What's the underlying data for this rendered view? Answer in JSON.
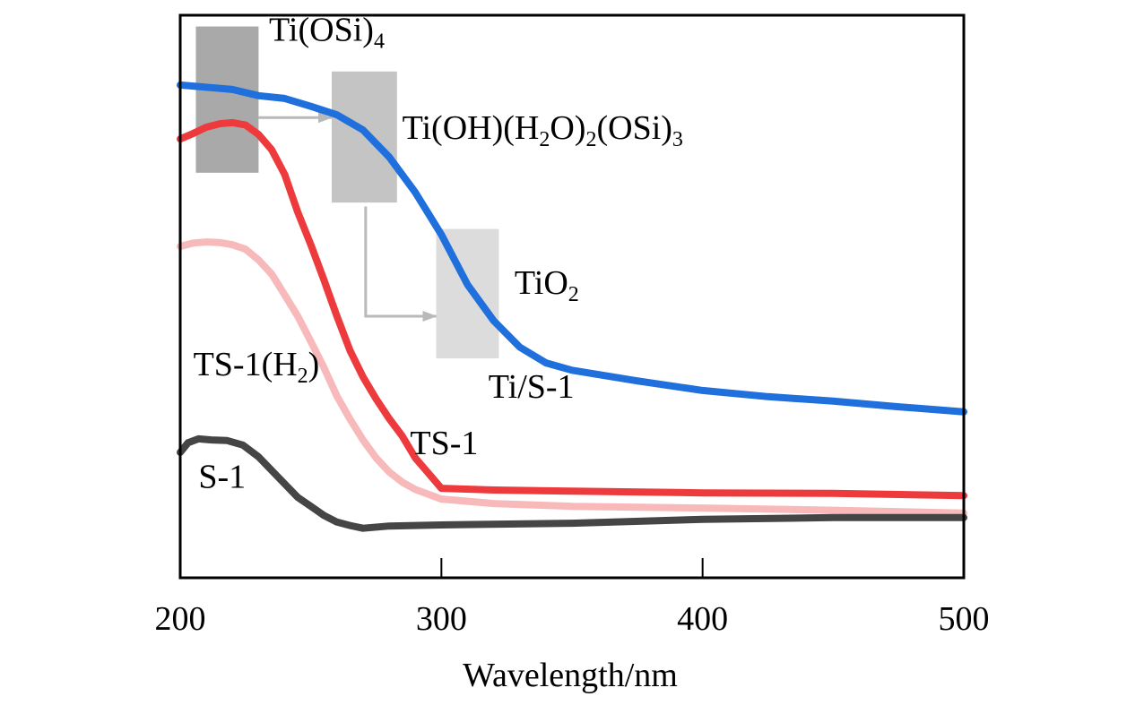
{
  "chart_data": {
    "type": "line",
    "title": "",
    "xlabel": "Wavelength/nm",
    "ylabel": "",
    "xlim": [
      200,
      500
    ],
    "ylim": [
      0,
      1
    ],
    "y_units": "arbitrary absorbance (no ticks shown)",
    "xticks": [
      200,
      300,
      400,
      500
    ],
    "xtick_labels": [
      "200",
      "300",
      "400",
      "500"
    ],
    "grid": false,
    "legend": "none (series labelled inline)",
    "series": [
      {
        "name": "Ti/S-1",
        "color": "#1f6fdc",
        "x": [
          200,
          210,
          220,
          230,
          240,
          250,
          260,
          270,
          280,
          290,
          300,
          310,
          320,
          330,
          340,
          350,
          375,
          400,
          425,
          450,
          475,
          500
        ],
        "y": [
          0.876,
          0.872,
          0.868,
          0.857,
          0.852,
          0.838,
          0.823,
          0.796,
          0.748,
          0.685,
          0.61,
          0.521,
          0.457,
          0.41,
          0.382,
          0.369,
          0.35,
          0.333,
          0.322,
          0.314,
          0.304,
          0.295
        ]
      },
      {
        "name": "TS-1",
        "color": "#ec3a3d",
        "x": [
          200,
          205,
          210,
          215,
          220,
          225,
          230,
          235,
          240,
          245,
          250,
          255,
          260,
          265,
          270,
          275,
          280,
          285,
          290,
          295,
          300,
          320,
          350,
          400,
          450,
          500
        ],
        "y": [
          0.78,
          0.79,
          0.801,
          0.807,
          0.809,
          0.805,
          0.788,
          0.761,
          0.717,
          0.65,
          0.592,
          0.53,
          0.465,
          0.404,
          0.357,
          0.318,
          0.283,
          0.252,
          0.213,
          0.186,
          0.159,
          0.156,
          0.154,
          0.151,
          0.15,
          0.146
        ]
      },
      {
        "name": "TS-1(H2)",
        "color": "#f7b9b9",
        "x": [
          200,
          205,
          210,
          215,
          220,
          225,
          230,
          235,
          240,
          245,
          250,
          255,
          260,
          265,
          270,
          275,
          280,
          285,
          290,
          300,
          320,
          350,
          400,
          450,
          500
        ],
        "y": [
          0.589,
          0.595,
          0.597,
          0.596,
          0.592,
          0.584,
          0.565,
          0.54,
          0.503,
          0.465,
          0.42,
          0.374,
          0.323,
          0.282,
          0.245,
          0.213,
          0.188,
          0.17,
          0.157,
          0.14,
          0.132,
          0.127,
          0.124,
          0.12,
          0.115
        ]
      },
      {
        "name": "S-1",
        "color": "#454545",
        "x": [
          200,
          203,
          207,
          212,
          218,
          224,
          230,
          235,
          240,
          245,
          250,
          255,
          260,
          265,
          270,
          280,
          300,
          350,
          400,
          450,
          500
        ],
        "y": [
          0.223,
          0.24,
          0.247,
          0.245,
          0.244,
          0.236,
          0.215,
          0.191,
          0.167,
          0.143,
          0.127,
          0.111,
          0.099,
          0.093,
          0.088,
          0.092,
          0.094,
          0.097,
          0.104,
          0.107,
          0.107
        ]
      }
    ],
    "series_labels": [
      {
        "series": "Ti/S-1",
        "text": "Ti/S-1",
        "x": 318,
        "y": 0.32
      },
      {
        "series": "TS-1",
        "text": "TS-1",
        "x": 288,
        "y": 0.22
      },
      {
        "series": "TS-1(H2)",
        "main": "TS-1(H",
        "subscript": "2",
        "tail": ")",
        "x": 205,
        "y": 0.36
      },
      {
        "series": "S-1",
        "text": "S-1",
        "x": 207,
        "y": 0.16
      }
    ],
    "annotations": {
      "boxes": [
        {
          "name": "ti-osi4-region",
          "x0": 206,
          "x1": 230,
          "y0": 0.72,
          "y1": 0.98,
          "color": "#8c8c8c",
          "opacity": 0.75
        },
        {
          "name": "ti-oh-h2o-osi-region",
          "x0": 258,
          "x1": 283,
          "y0": 0.667,
          "y1": 0.9,
          "color": "#b5b5b5",
          "opacity": 0.8
        },
        {
          "name": "tio2-region",
          "x0": 298,
          "x1": 322,
          "y0": 0.39,
          "y1": 0.62,
          "color": "#d0d0d0",
          "opacity": 0.75
        }
      ],
      "arrows": [
        {
          "name": "arrow-to-ti-oh",
          "points": [
            [
              230,
              0.818
            ],
            [
              258,
              0.818
            ]
          ],
          "color": "#b9b9b9"
        },
        {
          "name": "arrow-to-tio2",
          "points": [
            [
              271,
              0.66
            ],
            [
              271,
              0.465
            ],
            [
              298,
              0.465
            ]
          ],
          "color": "#b9b9b9"
        }
      ],
      "labels": [
        {
          "name": "ti-osi4-label",
          "parts": [
            {
              "t": "Ti(OSi)"
            },
            {
              "t": "4",
              "sub": true
            }
          ],
          "x": 234,
          "y": 0.955
        },
        {
          "name": "ti-oh-label",
          "parts": [
            {
              "t": "Ti(OH)(H"
            },
            {
              "t": "2",
              "sub": true
            },
            {
              "t": "O)"
            },
            {
              "t": "2",
              "sub": true
            },
            {
              "t": "(OSi)"
            },
            {
              "t": "3",
              "sub": true
            }
          ],
          "x": 285,
          "y": 0.78
        },
        {
          "name": "tio2-label",
          "parts": [
            {
              "t": "TiO"
            },
            {
              "t": "2",
              "sub": true
            }
          ],
          "x": 328,
          "y": 0.505
        }
      ]
    }
  }
}
